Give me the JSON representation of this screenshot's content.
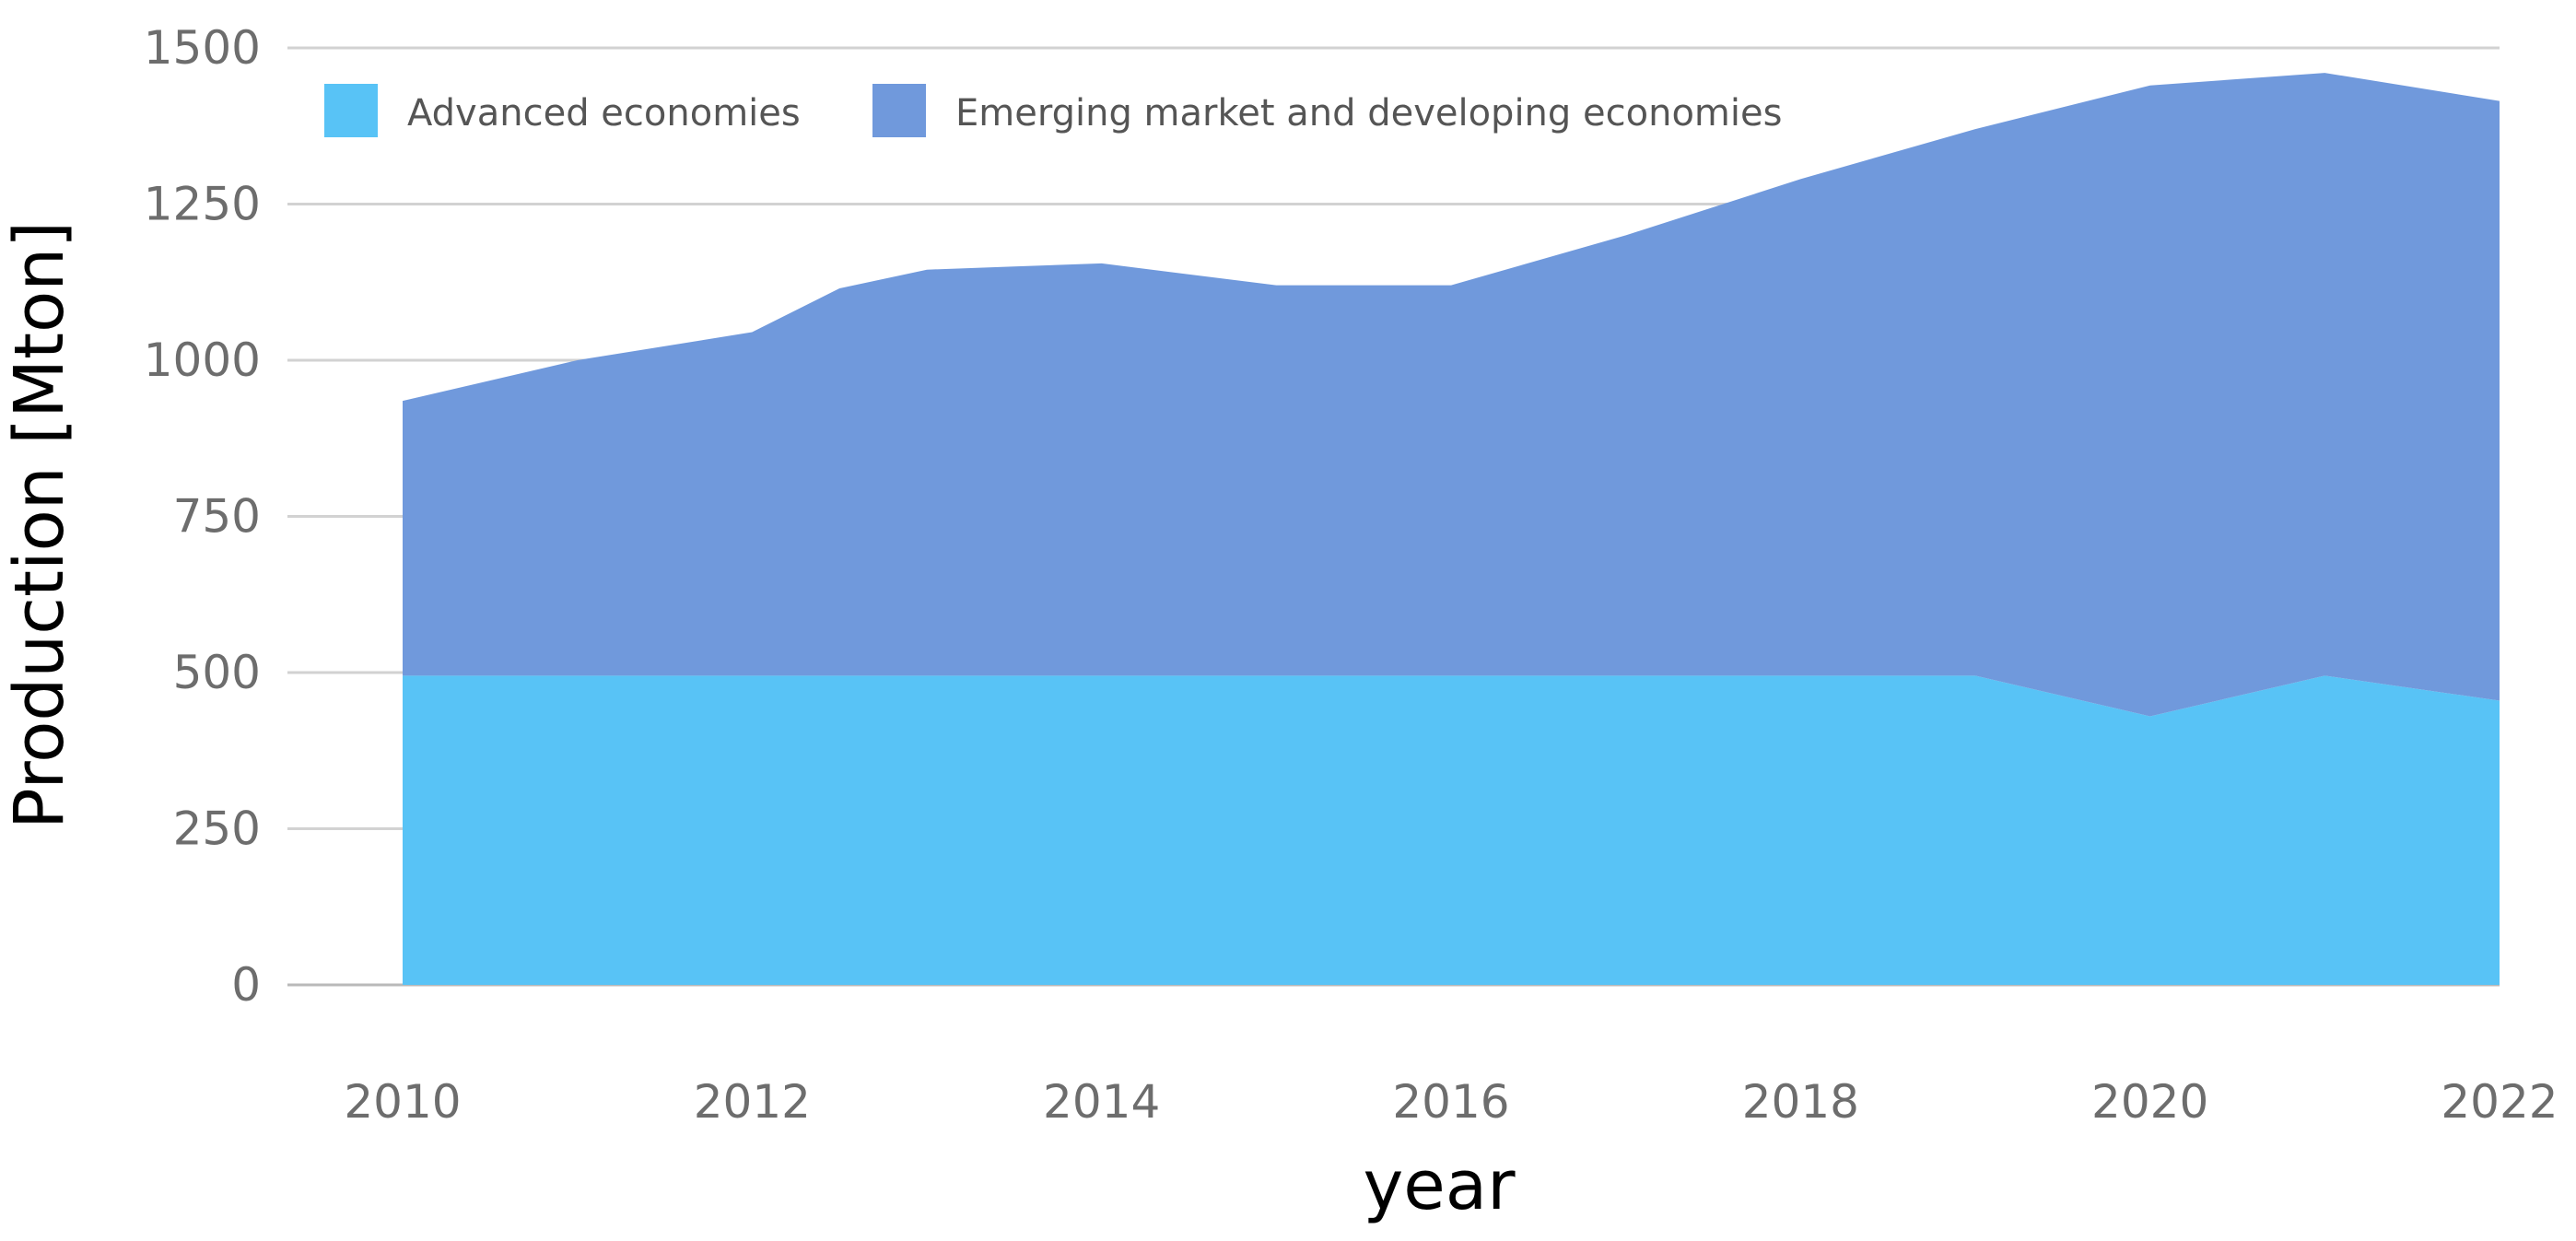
{
  "chart_data": {
    "type": "area",
    "stacked": true,
    "title": "",
    "xlabel": "year",
    "ylabel": "Production [Mton]",
    "xlim": [
      2010,
      2022
    ],
    "ylim": [
      0,
      1500
    ],
    "x_ticks": [
      2010,
      2012,
      2014,
      2016,
      2018,
      2020,
      2022
    ],
    "y_ticks": [
      0,
      250,
      500,
      750,
      1000,
      1250,
      1500
    ],
    "grid": "horizontal",
    "legend_position": "top-left",
    "x": [
      2010,
      2011,
      2012,
      2012.5,
      2013,
      2013.5,
      2014,
      2015,
      2016,
      2017,
      2018,
      2019,
      2020,
      2021,
      2022
    ],
    "series": [
      {
        "name": "Advanced economies",
        "color": "#58c3f6",
        "values": [
          495,
          495,
          495,
          495,
          495,
          495,
          495,
          495,
          495,
          495,
          495,
          495,
          430,
          495,
          455
        ]
      },
      {
        "name": "Emerging market and developing economies",
        "color": "#7099dc",
        "values": [
          440,
          505,
          550,
          620,
          650,
          655,
          660,
          625,
          625,
          705,
          795,
          875,
          1010,
          965,
          960
        ]
      }
    ]
  }
}
